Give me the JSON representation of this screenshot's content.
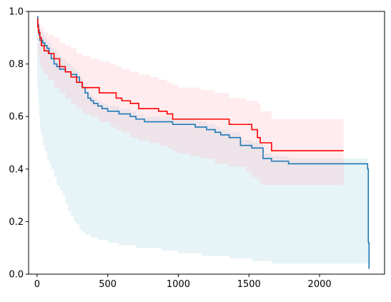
{
  "chart_data": {
    "type": "line",
    "title": "",
    "xlabel": "",
    "ylabel": "",
    "xlim": [
      -60,
      2460
    ],
    "ylim": [
      0,
      1
    ],
    "grid": false,
    "x_ticks": [
      0,
      500,
      1000,
      1500,
      2000
    ],
    "x_tick_labels": [
      "0",
      "500",
      "1000",
      "1500",
      "2000"
    ],
    "y_ticks": [
      0.0,
      0.2,
      0.4,
      0.6,
      0.8,
      1.0
    ],
    "y_tick_labels": [
      "0.0",
      "0.2",
      "0.4",
      "0.6",
      "0.8",
      "1.0"
    ],
    "colors": {
      "blue_line": "#1f77b4",
      "blue_band": "#add8e6",
      "red_line": "#ff0000",
      "red_band": "#ffc0cb"
    },
    "series": [
      {
        "color_key": "blue",
        "step": true,
        "x": [
          0,
          5,
          10,
          15,
          20,
          30,
          40,
          55,
          70,
          85,
          100,
          120,
          140,
          160,
          180,
          200,
          220,
          240,
          260,
          280,
          300,
          320,
          340,
          360,
          380,
          400,
          430,
          460,
          500,
          540,
          580,
          620,
          660,
          700,
          760,
          820,
          880,
          920,
          960,
          1000,
          1060,
          1120,
          1160,
          1200,
          1260,
          1300,
          1360,
          1440,
          1520,
          1560,
          1600,
          1660,
          1780,
          1840,
          1920,
          2340,
          2345,
          2350
        ],
        "y": [
          0.98,
          0.95,
          0.93,
          0.91,
          0.89,
          0.89,
          0.88,
          0.87,
          0.86,
          0.84,
          0.82,
          0.8,
          0.79,
          0.78,
          0.78,
          0.77,
          0.77,
          0.76,
          0.76,
          0.75,
          0.73,
          0.71,
          0.69,
          0.67,
          0.66,
          0.65,
          0.64,
          0.63,
          0.62,
          0.62,
          0.61,
          0.61,
          0.6,
          0.59,
          0.58,
          0.58,
          0.58,
          0.58,
          0.57,
          0.57,
          0.57,
          0.56,
          0.56,
          0.55,
          0.54,
          0.53,
          0.52,
          0.49,
          0.48,
          0.48,
          0.44,
          0.43,
          0.42,
          0.42,
          0.42,
          0.4,
          0.12,
          0.02
        ],
        "band_upper": [
          0.98,
          0.96,
          0.95,
          0.94,
          0.93,
          0.92,
          0.91,
          0.9,
          0.89,
          0.88,
          0.86,
          0.85,
          0.84,
          0.83,
          0.82,
          0.81,
          0.8,
          0.79,
          0.78,
          0.77,
          0.75,
          0.73,
          0.71,
          0.69,
          0.68,
          0.67,
          0.66,
          0.65,
          0.64,
          0.64,
          0.63,
          0.63,
          0.62,
          0.61,
          0.6,
          0.6,
          0.6,
          0.6,
          0.59,
          0.59,
          0.59,
          0.58,
          0.58,
          0.57,
          0.56,
          0.55,
          0.54,
          0.51,
          0.5,
          0.5,
          0.46,
          0.45,
          0.44,
          0.44,
          0.44,
          0.42,
          0.14,
          0.04
        ],
        "band_lower": [
          0.98,
          0.72,
          0.69,
          0.64,
          0.6,
          0.55,
          0.53,
          0.49,
          0.47,
          0.44,
          0.42,
          0.4,
          0.37,
          0.34,
          0.32,
          0.3,
          0.27,
          0.24,
          0.22,
          0.2,
          0.19,
          0.17,
          0.16,
          0.15,
          0.15,
          0.14,
          0.14,
          0.13,
          0.13,
          0.12,
          0.12,
          0.11,
          0.11,
          0.11,
          0.1,
          0.1,
          0.1,
          0.09,
          0.09,
          0.09,
          0.08,
          0.08,
          0.08,
          0.07,
          0.07,
          0.07,
          0.07,
          0.06,
          0.06,
          0.05,
          0.05,
          0.05,
          0.04,
          0.04,
          0.04,
          0.04,
          0.04,
          0.04
        ]
      },
      {
        "color_key": "red",
        "step": true,
        "x": [
          0,
          5,
          10,
          20,
          30,
          50,
          80,
          120,
          160,
          200,
          240,
          280,
          320,
          380,
          440,
          520,
          560,
          600,
          660,
          720,
          800,
          860,
          920,
          960,
          1000,
          1080,
          1160,
          1260,
          1360,
          1480,
          1520,
          1560,
          1580,
          1660,
          2170
        ],
        "y": [
          0.97,
          0.94,
          0.92,
          0.9,
          0.87,
          0.85,
          0.84,
          0.82,
          0.79,
          0.77,
          0.75,
          0.73,
          0.71,
          0.71,
          0.69,
          0.69,
          0.67,
          0.66,
          0.65,
          0.63,
          0.63,
          0.62,
          0.61,
          0.59,
          0.59,
          0.59,
          0.59,
          0.59,
          0.57,
          0.57,
          0.55,
          0.52,
          0.5,
          0.47,
          0.47
        ],
        "band_upper": [
          0.99,
          0.97,
          0.96,
          0.95,
          0.94,
          0.92,
          0.91,
          0.9,
          0.88,
          0.87,
          0.86,
          0.84,
          0.83,
          0.82,
          0.81,
          0.8,
          0.79,
          0.78,
          0.77,
          0.76,
          0.75,
          0.74,
          0.73,
          0.72,
          0.71,
          0.71,
          0.7,
          0.69,
          0.67,
          0.66,
          0.66,
          0.65,
          0.62,
          0.59,
          0.59
        ],
        "band_lower": [
          0.95,
          0.89,
          0.86,
          0.83,
          0.8,
          0.78,
          0.76,
          0.74,
          0.71,
          0.69,
          0.67,
          0.65,
          0.63,
          0.61,
          0.6,
          0.58,
          0.56,
          0.55,
          0.54,
          0.52,
          0.51,
          0.5,
          0.49,
          0.48,
          0.47,
          0.46,
          0.45,
          0.44,
          0.42,
          0.41,
          0.39,
          0.37,
          0.36,
          0.34,
          0.34
        ]
      }
    ]
  }
}
